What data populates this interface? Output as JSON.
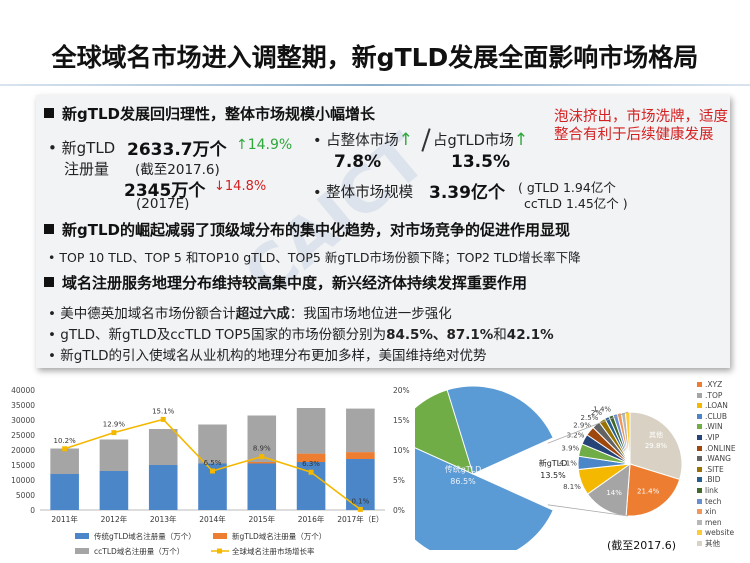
{
  "title": "全球域名市场进入调整期，新gTLD发展全面影响市场格局",
  "sec1": {
    "heading": "新gTLD发展回归理性，整体市场规模小幅增长",
    "left_bullet": "•",
    "left_label1": "新gTLD",
    "left_label2": "注册量",
    "value_2017_6": "2633.7万个",
    "growth_up": "14.9%",
    "date_2017_6": "(截至2017.6)",
    "value_2017e": "2345万个",
    "growth_down": "14.8%",
    "date_2017e": "(2017E)",
    "share_total_label": "• 占整体市场",
    "share_total_value": "7.8%",
    "share_gtld_label": "占gTLD市场",
    "share_gtld_value": "13.5%",
    "market_label": "• 整体市场规模",
    "market_value": "3.39亿个",
    "gtld_count": "( gTLD 1.94亿个",
    "cctld_count": "ccTLD 1.45亿个 )",
    "callout": "泡沫挤出，市场洗牌，适度整合有利于后续健康发展"
  },
  "sec2": {
    "heading": "新gTLD的崛起减弱了顶级域分布的集中化趋势，对市场竞争的促进作用显现",
    "line": "•  TOP 10 TLD、TOP 5 和TOP10 gTLD、TOP5 新gTLD市场份额下降；TOP2  TLD增长率下降"
  },
  "sec3": {
    "heading": "域名注册服务地理分布维持较高集中度，新兴经济体持续发挥重要作用",
    "line1_a": "•  美中德英加域名市场份额合计",
    "line1_b": "超过六成",
    "line1_c": "：我国市场地位进一步强化",
    "line2_a": "•  gTLD、新gTLD及ccTLD TOP5国家的市场份额分别为",
    "line2_b": "84.5%、87.1%",
    "line2_c": "和",
    "line2_d": "42.1%",
    "line3": "•  新gTLD的引入使域名从业机构的地理分布更加多样，美国维持绝对优势"
  },
  "icons": {
    "up_arrow": "up-arrow-icon",
    "down_arrow": "down-arrow-icon",
    "square_bullet": "square-bullet-icon"
  },
  "colors": {
    "legacy_gtld": "#4a86c8",
    "new_gtld": "#ed7d31",
    "cctld": "#a5a5a5",
    "growth_line": "#f5b800",
    "red": "#d42020",
    "green": "#2fa83a"
  },
  "chart_data": [
    {
      "type": "bar",
      "stacked": true,
      "categories": [
        "2011年",
        "2012年",
        "2013年",
        "2014年",
        "2015年",
        "2016年",
        "2017年（E）"
      ],
      "series": [
        {
          "name": "传统gTLD域名注册量（万个）",
          "values": [
            12000,
            13000,
            15000,
            15500,
            15500,
            16000,
            17000
          ]
        },
        {
          "name": "新gTLD域名注册量（万个）",
          "values": [
            0,
            0,
            0,
            0,
            500,
            2800,
            2300
          ]
        },
        {
          "name": "ccTLD域名注册量（万个）",
          "values": [
            8500,
            10500,
            12000,
            13000,
            15500,
            15200,
            14500
          ]
        }
      ],
      "line_series": {
        "name": "全球域名注册市场增长率",
        "values": [
          10.2,
          12.9,
          15.1,
          6.5,
          8.9,
          6.3,
          0.1
        ],
        "labels": [
          "10.2%",
          "12.9%",
          "15.1%",
          "6.5%",
          "8.9%",
          "6.3%",
          "0.1%"
        ]
      },
      "y_ticks": [
        "0",
        "5000",
        "10000",
        "15000",
        "20000",
        "25000",
        "30000",
        "35000",
        "40000"
      ],
      "y2_ticks": [
        "0%",
        "5%",
        "10%",
        "15%",
        "20%"
      ],
      "ylim": [
        0,
        40000
      ],
      "y2lim": [
        0,
        20
      ],
      "legend_position": "bottom"
    },
    {
      "type": "pie",
      "outer_slices": [
        {
          "label": "传统gTLD",
          "value": 86.5,
          "pct_label": "86.5%"
        },
        {
          "label": "新gTLD",
          "value": 13.5,
          "pct_label": "13.5%"
        }
      ],
      "inner_slices": [
        {
          "label": "其他",
          "value": 29.8,
          "pct_label": "29.8%"
        },
        {
          "label": ".XYZ",
          "value": 21.4,
          "pct_label": "21.4%"
        },
        {
          "label": ".TOP",
          "value": 14,
          "pct_label": "14%"
        },
        {
          "label": ".LOAN",
          "value": 8.1,
          "pct_label": "8.1%"
        },
        {
          "label": ".CLUB",
          "value": 4.1,
          "pct_label": "4.1%"
        },
        {
          "label": ".WIN",
          "value": 3.9,
          "pct_label": "3.9%"
        },
        {
          "label": ".VIP",
          "value": 3.2,
          "pct_label": "3.2%"
        },
        {
          "label": ".ONLINE",
          "value": 2.9,
          "pct_label": "2.9%"
        },
        {
          "label": ".WANG",
          "value": 2.5,
          "pct_label": "2.5%"
        },
        {
          "label": ".SITE",
          "value": 2,
          "pct_label": "2%"
        },
        {
          "label": ".BID",
          "value": 1.4,
          "pct_label": "1.4%"
        },
        {
          "label": "link",
          "value": 1.4,
          "pct_label": ""
        },
        {
          "label": "tech",
          "value": 1.3,
          "pct_label": ""
        },
        {
          "label": "xin",
          "value": 1.3,
          "pct_label": ""
        },
        {
          "label": "men",
          "value": 1.3,
          "pct_label": ""
        },
        {
          "label": "website",
          "value": 1.4,
          "pct_label": ""
        }
      ],
      "legend": [
        ".XYZ",
        ".TOP",
        ".LOAN",
        ".CLUB",
        ".WIN",
        ".VIP",
        ".ONLINE",
        ".WANG",
        ".SITE",
        ".BID",
        "link",
        "tech",
        "xin",
        "men",
        "website",
        "其他"
      ],
      "legend_colors": [
        "#ed7d31",
        "#a5a5a5",
        "#f5b800",
        "#4a86c8",
        "#70ad47",
        "#264478",
        "#9e480e",
        "#636363",
        "#997300",
        "#255e91",
        "#43682b",
        "#698ed0",
        "#f1975a",
        "#b7b7b7",
        "#ffcd33",
        "#d9d2c4"
      ],
      "note": "(截至2017.6)"
    }
  ]
}
